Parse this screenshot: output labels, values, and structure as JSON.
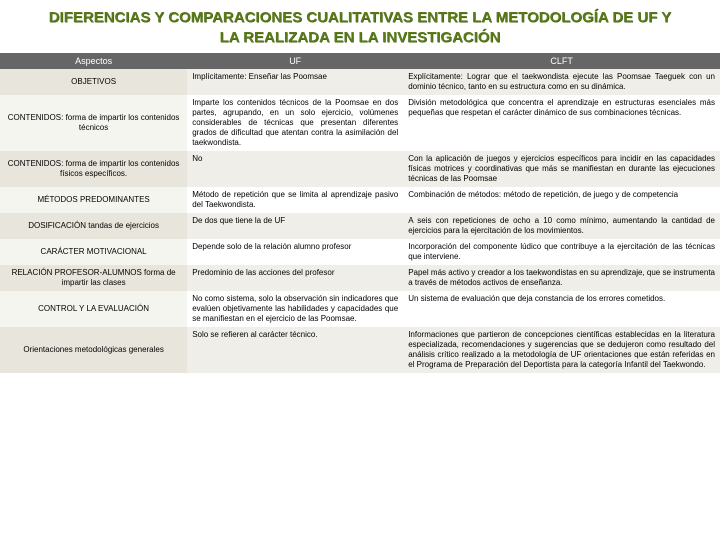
{
  "title": "DIFERENCIAS Y COMPARACIONES CUALITATIVAS ENTRE LA METODOLOGÍA DE UF Y LA REALIZADA EN LA INVESTIGACIÓN",
  "headers": {
    "c1": "Aspectos",
    "c2": "UF",
    "c3": "CLFT"
  },
  "rows": [
    {
      "a": "OBJETIVOS",
      "b": "Implícitamente: Enseñar las Poomsae",
      "c": "Explícitamente: Lograr que el taekwondista ejecute las Poomsae Taeguek con un dominio técnico, tanto en su estructura como en su dinámica."
    },
    {
      "a": "CONTENIDOS:\nforma de impartir los contenidos técnicos",
      "b": "Imparte los contenidos técnicos de la Poomsae en dos partes, agrupando, en un solo ejercicio, volúmenes considerables de técnicas que presentan diferentes grados de dificultad que atentan contra la asimilación del taekwondista.",
      "c": "División metodológica que concentra el aprendizaje en estructuras esenciales más pequeñas que respetan el carácter dinámico de sus combinaciones técnicas."
    },
    {
      "a": "CONTENIDOS:\nforma de impartir los contenidos físicos específicos.",
      "b": "No",
      "c": "Con la aplicación de juegos y ejercicios específicos para incidir en las capacidades físicas motrices y coordinativas que más se manifiestan en durante las ejecuciones técnicas de las Poomsae"
    },
    {
      "a": "MÉTODOS\nPREDOMINANTES",
      "b": "Método de repetición que se limita al aprendizaje pasivo del Taekwondista.",
      "c": "Combinación de métodos: método de repetición, de juego y de competencia"
    },
    {
      "a": "DOSIFICACIÓN tandas de ejercicios",
      "b": "De dos que tiene la de UF",
      "c": "A seis con repeticiones de ocho a 10 como mínimo, aumentando la cantidad de ejercicios para la ejercitación de los movimientos."
    },
    {
      "a": "CARÁCTER MOTIVACIONAL",
      "b": "Depende solo de la relación alumno profesor",
      "c": "Incorporación del componente lúdico que contribuye a la ejercitación de las técnicas que interviene."
    },
    {
      "a": "RELACIÓN PROFESOR-ALUMNOS\nforma de impartir las clases",
      "b": "Predominio de las acciones del profesor",
      "c": "Papel más activo y creador a los taekwondistas en su aprendizaje, que se instrumenta a través de métodos activos de enseñanza."
    },
    {
      "a": "CONTROL Y LA EVALUACIÓN",
      "b": "No como sistema, solo la observación sin indicadores que evalúen objetivamente las habilidades y capacidades que se manifiestan en el ejercicio de las Poomsae.",
      "c": "Un sistema de evaluación que deja constancia de los errores cometidos."
    },
    {
      "a": "Orientaciones metodológicas generales",
      "b": "Solo se refieren al carácter técnico.",
      "c": "Informaciones que partieron de concepciones científicas establecidas en la literatura especializada, recomendaciones y sugerencias que se dedujeron como resultado del análisis crítico realizado a la metodología de UF orientaciones que están referidas en el Programa de Preparación del Deportista para la categoría Infantil del Taekwondo."
    }
  ],
  "colors": {
    "title": "#5a7a1a",
    "header_bg": "#666666",
    "header_fg": "#ffffff",
    "band_bg": "#f0eee8",
    "band_aspect_bg": "#e8e6dc",
    "plain_bg": "#ffffff",
    "plain_aspect_bg": "#f5f5f0"
  }
}
